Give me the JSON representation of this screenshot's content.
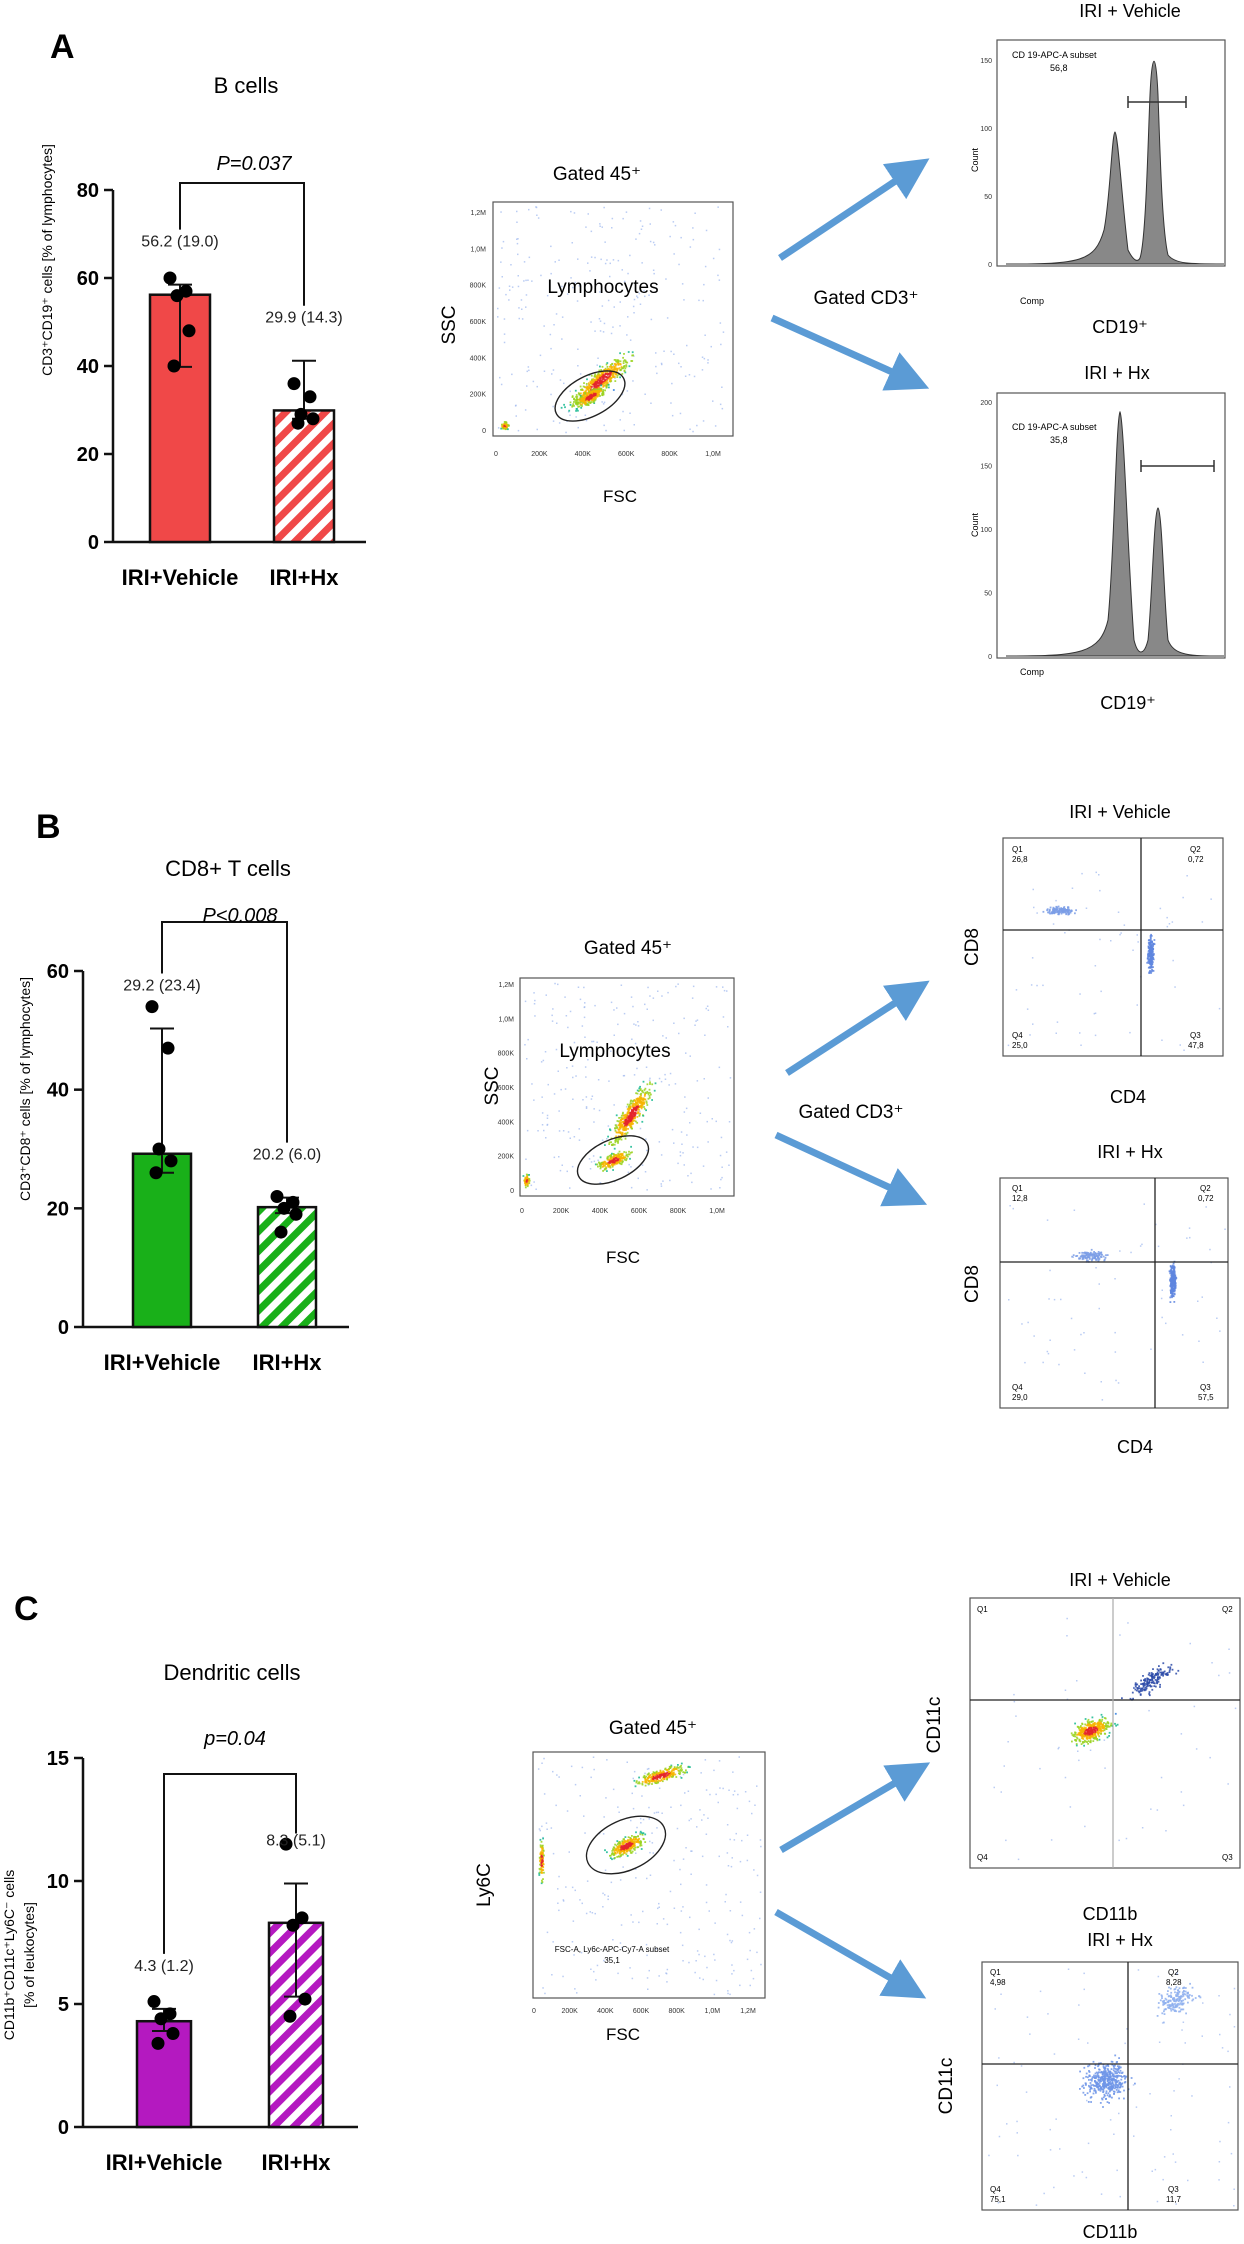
{
  "panels": {
    "A": {
      "letter": "A",
      "title": "B cells",
      "pvalue": "P=0.037",
      "ylabel": "CD3⁺CD19⁺ cells [% of lymphocytes]",
      "center": {
        "title": "Gated 45⁺",
        "population": "Lymphocytes",
        "xlabel": "FSC",
        "ylabel": "SSC",
        "xticks": [
          "0",
          "200K",
          "400K",
          "600K",
          "800K",
          "1,0M"
        ],
        "yticks": [
          "0",
          "200K",
          "400K",
          "600K",
          "800K",
          "1,0M",
          "1,2M"
        ]
      },
      "gate_label": "Gated CD3⁺",
      "right_top": {
        "title": "IRI + Vehicle",
        "subset": "CD 19-APC-A subset",
        "subset_value": "56,8",
        "xlabel": "CD19⁺",
        "ylabel": "Count",
        "comp": "Comp",
        "yticks": [
          "0",
          "50",
          "100",
          "150"
        ]
      },
      "right_bottom": {
        "title": "IRI + Hx",
        "subset": "CD 19-APC-A subset",
        "subset_value": "35,8",
        "xlabel": "CD19⁺",
        "ylabel": "Count",
        "comp": "Comp",
        "yticks": [
          "0",
          "50",
          "100",
          "150",
          "200"
        ]
      }
    },
    "B": {
      "letter": "B",
      "title": "CD8+  T cells",
      "pvalue": "P<0.008",
      "ylabel": "CD3⁺CD8⁺ cells [% of lymphocytes]",
      "center": {
        "title": "Gated 45⁺",
        "population": "Lymphocytes",
        "xlabel": "FSC",
        "ylabel": "SSC",
        "xticks": [
          "0",
          "200K",
          "400K",
          "600K",
          "800K",
          "1,0M"
        ],
        "yticks": [
          "0",
          "200K",
          "400K",
          "600K",
          "800K",
          "1,0M",
          "1,2M"
        ]
      },
      "gate_label": "Gated CD3⁺",
      "right_top": {
        "title": "IRI + Vehicle",
        "xlabel": "CD4",
        "ylabel": "CD8",
        "q1": "Q1",
        "q1v": "26,8",
        "q2": "Q2",
        "q2v": "0,72",
        "q3": "Q3",
        "q3v": "47,8",
        "q4": "Q4",
        "q4v": "25,0"
      },
      "right_bottom": {
        "title": "IRI + Hx",
        "xlabel": "CD4",
        "ylabel": "CD8",
        "q1": "Q1",
        "q1v": "12,8",
        "q2": "Q2",
        "q2v": "0,72",
        "q3": "Q3",
        "q3v": "57,5",
        "q4": "Q4",
        "q4v": "29,0"
      }
    },
    "C": {
      "letter": "C",
      "title": "Dendritic  cells",
      "pvalue": "p=0.04",
      "ylabel1": "CD11b⁺CD11c⁺Ly6C⁻ cells",
      "ylabel2": "[% of leukocytes]",
      "center": {
        "title": "Gated 45⁺",
        "xlabel": "FSC",
        "ylabel": "Ly6C",
        "subset": "FSC-A, Ly6c-APC-Cy7-A subset",
        "subset_value": "35,1",
        "xticks": [
          "0",
          "200K",
          "400K",
          "600K",
          "800K",
          "1,0M",
          "1,2M"
        ]
      },
      "right_top": {
        "title": "IRI + Vehicle",
        "xlabel": "CD11b",
        "ylabel": "CD11c",
        "q1": "Q1",
        "q2": "Q2",
        "q3": "Q3",
        "q4": "Q4"
      },
      "right_bottom": {
        "title": "IRI + Hx",
        "xlabel": "CD11b",
        "ylabel": "CD11c",
        "q1": "Q1",
        "q1v": "4,98",
        "q2": "Q2",
        "q2v": "8,28",
        "q3": "Q3",
        "q3v": "11,7",
        "q4": "Q4",
        "q4v": "75,1"
      }
    }
  },
  "chart_data": [
    {
      "type": "bar",
      "title": "B cells",
      "ylabel": "CD3⁺CD19⁺ cells [% of lymphocytes]",
      "ylim": [
        0,
        80
      ],
      "yticks": [
        0,
        20,
        40,
        60,
        80
      ],
      "categories": [
        "IRI+Vehicle",
        "IRI+Hx"
      ],
      "values": [
        56.2,
        29.9
      ],
      "value_labels": [
        "56.2 (19.0)",
        "29.9 (14.3)"
      ],
      "error_low": [
        39.8,
        28.0
      ],
      "error_high": [
        58.5,
        41.2
      ],
      "points": [
        [
          60,
          57,
          56,
          48,
          40
        ],
        [
          36,
          33,
          29,
          28,
          27
        ]
      ],
      "colors": [
        "#f04848",
        "#f04848"
      ],
      "patterns": [
        "solid",
        "hatch"
      ],
      "annotation": "P=0.037"
    },
    {
      "type": "bar",
      "title": "CD8+  T cells",
      "ylabel": "CD3⁺CD8⁺ cells [% of lymphocytes]",
      "ylim": [
        0,
        60
      ],
      "yticks": [
        0,
        20,
        40,
        60
      ],
      "categories": [
        "IRI+Vehicle",
        "IRI+Hx"
      ],
      "values": [
        29.2,
        20.2
      ],
      "value_labels": [
        "29.2 (23.4)",
        "20.2 (6.0)"
      ],
      "error_low": [
        26.0,
        19.2
      ],
      "error_high": [
        50.3,
        21.8
      ],
      "points": [
        [
          54,
          47,
          30,
          28,
          26
        ],
        [
          22,
          21,
          20,
          19,
          16
        ]
      ],
      "colors": [
        "#19b019",
        "#19b019"
      ],
      "patterns": [
        "solid",
        "hatch"
      ],
      "annotation": "P<0.008"
    },
    {
      "type": "bar",
      "title": "Dendritic  cells",
      "ylabel": "CD11b⁺CD11c⁺Ly6C⁻ cells [% of leukocytes]",
      "ylim": [
        0,
        15
      ],
      "yticks": [
        0,
        5,
        10,
        15
      ],
      "categories": [
        "IRI+Vehicle",
        "IRI+Hx"
      ],
      "values": [
        4.3,
        8.3
      ],
      "value_labels": [
        "4.3 (1.2)",
        "8.3 (5.1)"
      ],
      "error_low": [
        3.9,
        5.3
      ],
      "error_high": [
        4.8,
        9.9
      ],
      "points": [
        [
          5.1,
          4.6,
          4.4,
          3.8,
          3.4
        ],
        [
          11.5,
          8.5,
          8.2,
          5.2,
          4.5
        ]
      ],
      "colors": [
        "#b419c0",
        "#b419c0"
      ],
      "patterns": [
        "solid",
        "hatch"
      ],
      "annotation": "p=0.04"
    }
  ]
}
